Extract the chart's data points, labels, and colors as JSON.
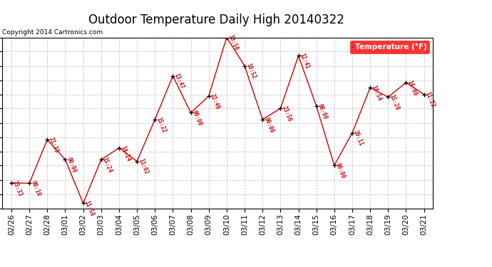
{
  "title": "Outdoor Temperature Daily High 20140322",
  "copyright": "Copyright 2014 Cartronics.com",
  "legend_label": "Temperature (°F)",
  "dates": [
    "02/26",
    "02/27",
    "02/28",
    "03/01",
    "03/02",
    "03/03",
    "03/04",
    "03/05",
    "03/06",
    "03/07",
    "03/08",
    "03/09",
    "03/10",
    "03/11",
    "03/12",
    "03/13",
    "03/14",
    "03/15",
    "03/16",
    "03/17",
    "03/18",
    "03/19",
    "03/20",
    "03/21"
  ],
  "temps": [
    15.5,
    15.5,
    28.5,
    22.5,
    9.5,
    22.5,
    26.0,
    22.0,
    34.5,
    47.5,
    36.5,
    41.5,
    59.0,
    50.5,
    34.5,
    37.8,
    53.5,
    38.5,
    20.8,
    30.5,
    44.0,
    41.2,
    45.5,
    42.0
  ],
  "time_labels": [
    "23:33",
    "00:10",
    "21:33",
    "00:00",
    "11:50",
    "15:24",
    "14:24",
    "13:02",
    "15:22",
    "13:47",
    "00:00",
    "22:49",
    "13:50",
    "10:52",
    "00:00",
    "23:56",
    "12:41",
    "00:00",
    "00:00",
    "20:11",
    "14:54",
    "15:20",
    "14:00",
    "11:22"
  ],
  "ylim": [
    8.0,
    59.0
  ],
  "yticks": [
    8.0,
    12.2,
    16.5,
    20.8,
    25.0,
    29.2,
    33.5,
    37.8,
    42.0,
    46.2,
    50.5,
    54.8,
    59.0
  ],
  "line_color": "#cc0000",
  "marker_color": "#000000",
  "label_color": "#cc0000",
  "background_color": "#ffffff",
  "grid_color": "#bbbbbb",
  "title_fontsize": 12,
  "tick_fontsize": 7.5,
  "figsize": [
    6.9,
    3.75
  ],
  "dpi": 100
}
